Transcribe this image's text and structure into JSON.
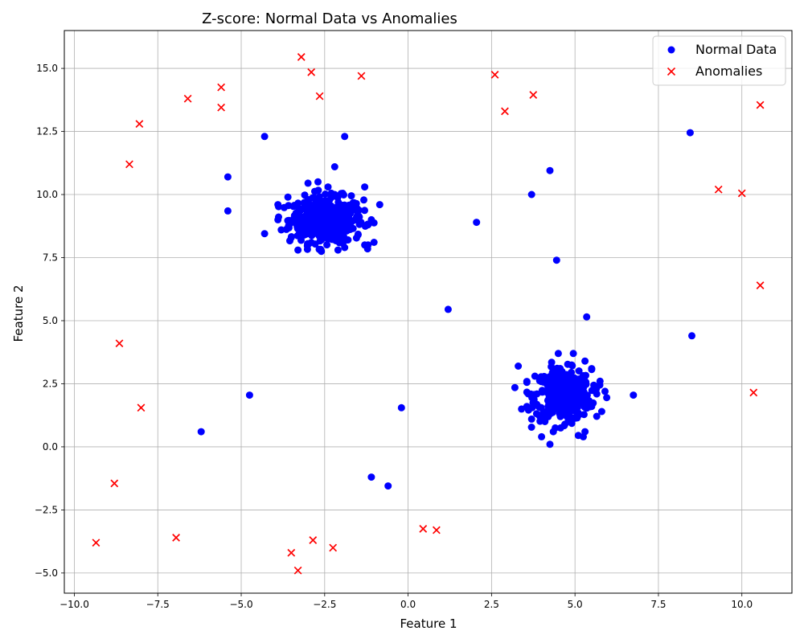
{
  "chart_data": {
    "type": "scatter",
    "title": "Z-score: Normal Data vs Anomalies",
    "xlabel": "Feature 1",
    "ylabel": "Feature 2",
    "xlim": [
      -10.3,
      11.5
    ],
    "ylim": [
      -5.8,
      16.5
    ],
    "xticks": [
      -10.0,
      -7.5,
      -5.0,
      -2.5,
      0.0,
      2.5,
      5.0,
      7.5,
      10.0
    ],
    "yticks": [
      -5.0,
      -2.5,
      0.0,
      2.5,
      5.0,
      7.5,
      10.0,
      12.5,
      15.0
    ],
    "xtick_labels": [
      "−10.0",
      "−7.5",
      "−5.0",
      "−2.5",
      "0.0",
      "2.5",
      "5.0",
      "7.5",
      "10.0"
    ],
    "ytick_labels": [
      "−5.0",
      "−2.5",
      "0.0",
      "2.5",
      "5.0",
      "7.5",
      "10.0",
      "12.5",
      "15.0"
    ],
    "grid": true,
    "legend_position": "top-right",
    "series": [
      {
        "name": "Normal Data",
        "marker": "circle",
        "color": "#0000ff",
        "points": [
          [
            -4.3,
            12.3
          ],
          [
            -1.9,
            12.3
          ],
          [
            -2.2,
            11.1
          ],
          [
            -5.4,
            10.7
          ],
          [
            -5.4,
            9.35
          ],
          [
            -4.3,
            8.45
          ],
          [
            -3.9,
            9.6
          ],
          [
            -3.9,
            9.0
          ],
          [
            -3.6,
            9.9
          ],
          [
            -3.5,
            8.3
          ],
          [
            -3.3,
            7.8
          ],
          [
            -3.0,
            10.45
          ],
          [
            -2.7,
            10.5
          ],
          [
            -2.6,
            7.75
          ],
          [
            -2.4,
            10.3
          ],
          [
            -2.1,
            7.8
          ],
          [
            -1.9,
            7.9
          ],
          [
            -1.7,
            9.95
          ],
          [
            -1.3,
            10.3
          ],
          [
            -1.3,
            8.0
          ],
          [
            -1.2,
            8.0
          ],
          [
            -1.1,
            9.0
          ],
          [
            -0.85,
            9.6
          ],
          [
            -1.2,
            8.8
          ],
          [
            -3.8,
            8.6
          ],
          [
            -1.5,
            8.4
          ],
          [
            -2.0,
            9.3
          ],
          [
            -2.6,
            8.2
          ],
          [
            -3.1,
            9.5
          ],
          [
            -1.6,
            9.4
          ],
          [
            -3.4,
            9.0
          ],
          [
            -2.9,
            8.1
          ],
          [
            -1.8,
            8.2
          ],
          [
            -2.2,
            10.0
          ],
          [
            -3.0,
            9.8
          ],
          [
            8.45,
            12.45
          ],
          [
            4.25,
            10.95
          ],
          [
            3.7,
            10.0
          ],
          [
            2.05,
            8.9
          ],
          [
            4.45,
            7.4
          ],
          [
            1.2,
            5.45
          ],
          [
            5.35,
            5.15
          ],
          [
            8.5,
            4.4
          ],
          [
            6.75,
            2.05
          ],
          [
            -4.75,
            2.05
          ],
          [
            -6.2,
            0.6
          ],
          [
            -0.2,
            1.55
          ],
          [
            -1.1,
            -1.2
          ],
          [
            -0.6,
            -1.55
          ],
          [
            3.3,
            3.2
          ],
          [
            3.2,
            2.35
          ],
          [
            3.4,
            1.5
          ],
          [
            3.7,
            1.1
          ],
          [
            4.0,
            0.4
          ],
          [
            4.25,
            0.1
          ],
          [
            4.35,
            0.6
          ],
          [
            5.1,
            0.45
          ],
          [
            5.25,
            0.4
          ],
          [
            5.3,
            0.6
          ],
          [
            5.8,
            1.4
          ],
          [
            5.95,
            1.95
          ],
          [
            5.9,
            2.2
          ],
          [
            5.75,
            2.6
          ],
          [
            5.5,
            3.1
          ],
          [
            5.3,
            3.4
          ],
          [
            4.95,
            3.7
          ],
          [
            4.5,
            3.7
          ],
          [
            4.3,
            3.35
          ],
          [
            3.8,
            2.8
          ],
          [
            3.6,
            2.1
          ],
          [
            4.1,
            1.0
          ],
          [
            4.7,
            0.9
          ],
          [
            5.5,
            1.6
          ]
        ],
        "clusters": [
          {
            "center": [
              -2.45,
              9.0
            ],
            "spread": [
              0.55,
              0.45
            ],
            "count": 380
          },
          {
            "center": [
              4.65,
              2.05
            ],
            "spread": [
              0.42,
              0.5
            ],
            "count": 380
          }
        ]
      },
      {
        "name": "Anomalies",
        "marker": "x",
        "color": "#ff0000",
        "points": [
          [
            -3.2,
            15.45
          ],
          [
            -2.9,
            14.85
          ],
          [
            -5.6,
            14.25
          ],
          [
            -1.4,
            14.7
          ],
          [
            2.6,
            14.75
          ],
          [
            3.75,
            13.95
          ],
          [
            -6.6,
            13.8
          ],
          [
            -5.6,
            13.45
          ],
          [
            -2.65,
            13.9
          ],
          [
            2.9,
            13.3
          ],
          [
            -8.05,
            12.8
          ],
          [
            -8.35,
            11.2
          ],
          [
            10.55,
            13.55
          ],
          [
            9.3,
            10.2
          ],
          [
            10.0,
            10.05
          ],
          [
            10.55,
            6.4
          ],
          [
            10.35,
            2.15
          ],
          [
            -8.65,
            4.1
          ],
          [
            -8.0,
            1.55
          ],
          [
            -8.8,
            -1.45
          ],
          [
            -9.35,
            -3.8
          ],
          [
            -6.95,
            -3.6
          ],
          [
            -3.5,
            -4.2
          ],
          [
            -2.85,
            -3.7
          ],
          [
            -2.25,
            -4.0
          ],
          [
            -3.3,
            -4.9
          ],
          [
            0.45,
            -3.25
          ],
          [
            0.85,
            -3.3
          ]
        ]
      }
    ]
  }
}
